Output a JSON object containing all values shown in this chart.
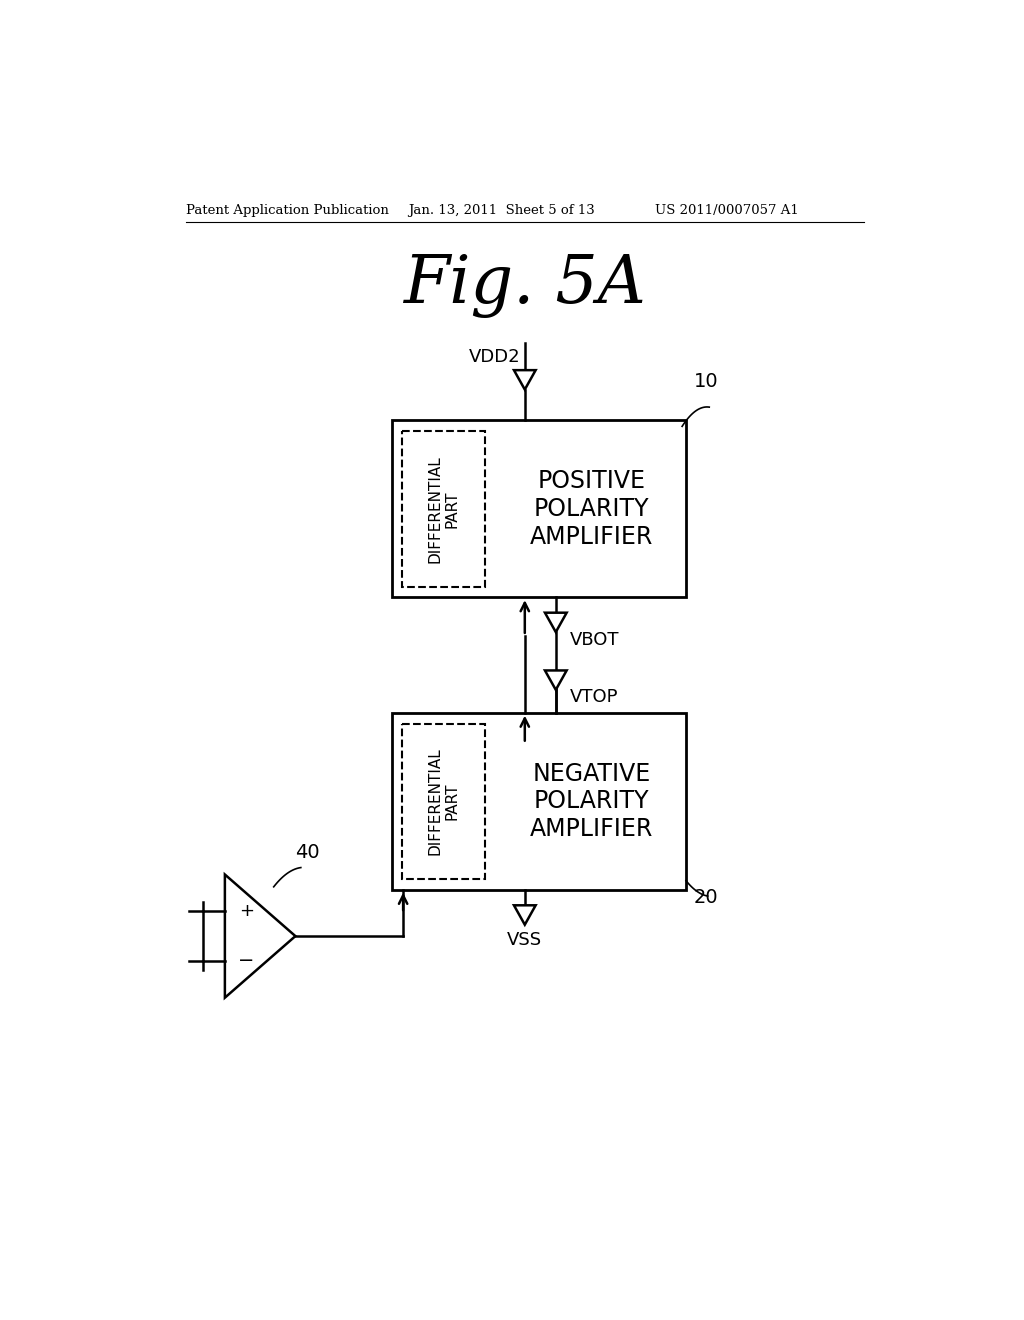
{
  "bg_color": "#ffffff",
  "header_left": "Patent Application Publication",
  "header_mid": "Jan. 13, 2011  Sheet 5 of 13",
  "header_right": "US 2011/0007057 A1",
  "fig_title": "Fig. 5A",
  "box1_label": "POSITIVE\nPOLARITY\nAMPLIFIER",
  "box2_label": "NEGATIVE\nPOLARITY\nAMPLIFIER",
  "diff_label": "DIFFERENTIAL\nPART",
  "label_10": "10",
  "label_20": "20",
  "label_40": "40",
  "label_VDD2": "VDD2",
  "label_VBOT": "VBOT",
  "label_VTOP": "VTOP",
  "label_VSS": "VSS"
}
